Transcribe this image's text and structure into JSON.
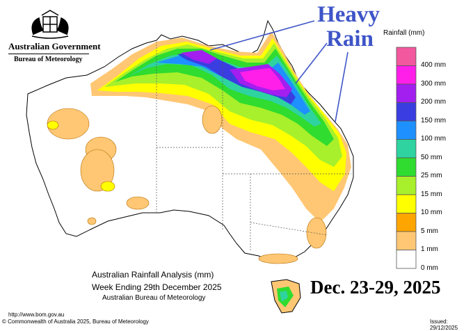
{
  "header": {
    "government": "Australian Government",
    "bureau": "Bureau of Meteorology"
  },
  "callout": {
    "line1": "Heavy",
    "line2": "Rain"
  },
  "legend": {
    "title": "Rainfall (mm)",
    "items": [
      {
        "label": "400 mm",
        "color": "#f2589e"
      },
      {
        "label": "300 mm",
        "color": "#ff1fe8"
      },
      {
        "label": "200 mm",
        "color": "#a21fef"
      },
      {
        "label": "150 mm",
        "color": "#3a3ee0"
      },
      {
        "label": "100 mm",
        "color": "#1e90ff"
      },
      {
        "label": "50 mm",
        "color": "#2ed3a0"
      },
      {
        "label": "25 mm",
        "color": "#2fdc2f"
      },
      {
        "label": "15 mm",
        "color": "#a8f02b"
      },
      {
        "label": "10 mm",
        "color": "#ffff00"
      },
      {
        "label": "5 mm",
        "color": "#ffa500"
      },
      {
        "label": "1 mm",
        "color": "#ffc773"
      },
      {
        "label": "0 mm",
        "color": "#ffffff"
      }
    ]
  },
  "caption": {
    "line1": "Australian Rainfall Analysis (mm)",
    "line2": "Week Ending 29th December 2025",
    "line3": "Australian Bureau of Meteorology"
  },
  "date_range": "Dec. 23-29, 2025",
  "footer": {
    "url": "http://www.bom.gov.au",
    "copyright": "© Commonwealth of Australia 2025, Bureau of Meteorology",
    "issued": "Issued: 29/12/2025"
  }
}
